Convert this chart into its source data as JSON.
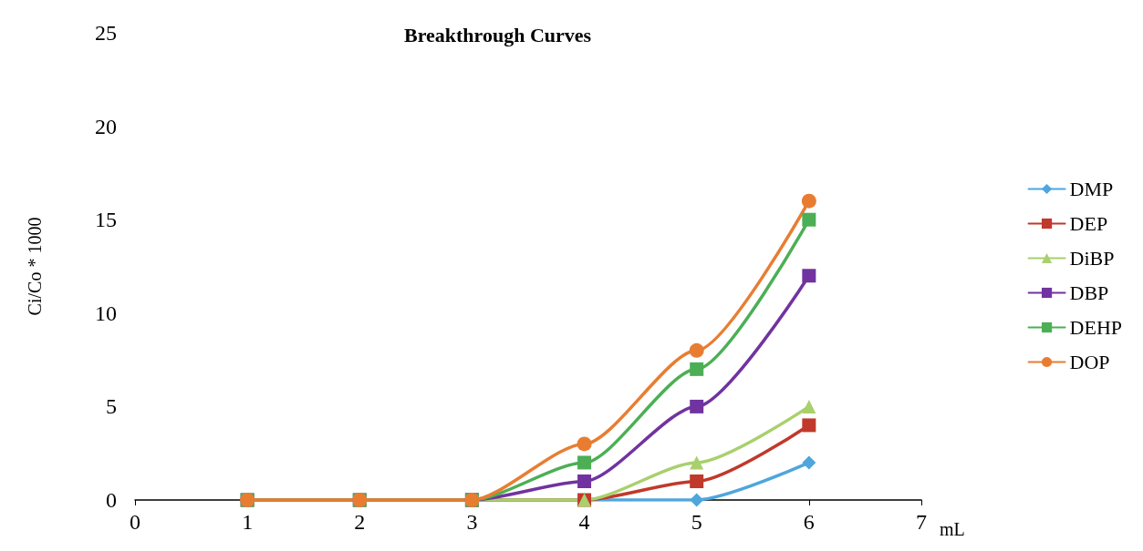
{
  "chart_data": {
    "type": "line",
    "title": "Breakthrough Curves",
    "xlabel": "mL",
    "ylabel": "Ci/Co * 1000",
    "x": [
      1,
      2,
      3,
      4,
      5,
      6
    ],
    "xlim": [
      0,
      7
    ],
    "xticks": [
      0,
      1,
      2,
      3,
      4,
      5,
      6,
      7
    ],
    "ylim": [
      0,
      25
    ],
    "yticks": [
      0,
      5,
      10,
      15,
      20,
      25
    ],
    "grid": false,
    "legend": "right",
    "line_style": "solid",
    "series": [
      {
        "name": "DMP",
        "color": "#4ea6dc",
        "marker": "diamond",
        "values": [
          null,
          null,
          0,
          0,
          0,
          2
        ]
      },
      {
        "name": "DEP",
        "color": "#c0392b",
        "marker": "square",
        "values": [
          null,
          null,
          0,
          0,
          1,
          4
        ]
      },
      {
        "name": "DiBP",
        "color": "#a9d06c",
        "marker": "triangle",
        "values": [
          0,
          0,
          0,
          0,
          2,
          5
        ]
      },
      {
        "name": "DBP",
        "color": "#7133a0",
        "marker": "square",
        "values": [
          0,
          0,
          0,
          1,
          5,
          12
        ]
      },
      {
        "name": "DEHP",
        "color": "#4caf55",
        "marker": "square",
        "values": [
          0,
          0,
          0,
          2,
          7,
          15
        ]
      },
      {
        "name": "DOP",
        "color": "#e87d32",
        "marker": "circle",
        "values": [
          0,
          0,
          0,
          3,
          8,
          16
        ]
      }
    ]
  }
}
